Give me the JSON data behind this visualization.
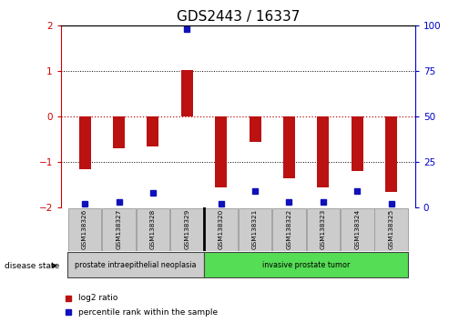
{
  "title": "GDS2443 / 16337",
  "samples": [
    "GSM138326",
    "GSM138327",
    "GSM138328",
    "GSM138329",
    "GSM138320",
    "GSM138321",
    "GSM138322",
    "GSM138323",
    "GSM138324",
    "GSM138325"
  ],
  "log2_ratio": [
    -1.15,
    -0.7,
    -0.65,
    1.02,
    -1.55,
    -0.55,
    -1.35,
    -1.55,
    -1.2,
    -1.65
  ],
  "percentile_rank": [
    2,
    3,
    8,
    98,
    2,
    9,
    3,
    3,
    9,
    2
  ],
  "bar_color": "#bb1111",
  "dot_color": "#1111bb",
  "ylim": [
    -2,
    2
  ],
  "y2lim": [
    0,
    100
  ],
  "yticks": [
    -2,
    -1,
    0,
    1,
    2
  ],
  "y2ticks": [
    0,
    25,
    50,
    75,
    100
  ],
  "group1_count": 4,
  "group2_count": 6,
  "group1_label": "prostate intraepithelial neoplasia",
  "group2_label": "invasive prostate tumor",
  "group1_color": "#cccccc",
  "group2_color": "#55dd55",
  "disease_state_label": "disease state",
  "legend_red_label": "log2 ratio",
  "legend_blue_label": "percentile rank within the sample",
  "bar_width": 0.35,
  "background_color": "#ffffff",
  "title_fontsize": 11,
  "tick_fontsize": 7.5,
  "red_left_color": "#cc0000",
  "blue_right_color": "#0000cc"
}
